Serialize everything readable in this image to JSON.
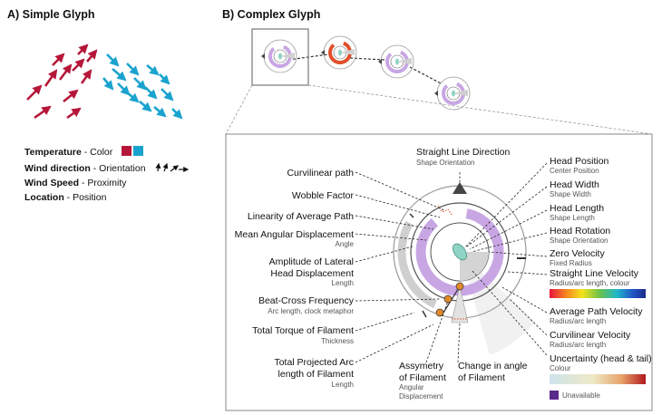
{
  "panel_a": {
    "title": "A) Simple Glyph",
    "legend": [
      {
        "key": "Temperature",
        "value": "Color"
      },
      {
        "key": "Wind direction",
        "value": "Orientation"
      },
      {
        "key": "Wind Speed",
        "value": "Proximity"
      },
      {
        "key": "Location",
        "value": "Position"
      }
    ],
    "colors": {
      "warm": "#b5173a",
      "cold": "#1aa3cf"
    }
  },
  "panel_b": {
    "title": "B) Complex Glyph",
    "labels_left": [
      {
        "main": "Curvilinear path",
        "sub": ""
      },
      {
        "main": "Wobble Factor",
        "sub": ""
      },
      {
        "main": "Linearity of Average Path",
        "sub": ""
      },
      {
        "main": "Mean Angular Displacement",
        "sub": "Angle"
      },
      {
        "main": "Amplitude of Lateral",
        "main2": "Head Displacement",
        "sub": "Length"
      },
      {
        "main": "Beat-Cross Frequency",
        "sub": "Arc length, clock metaphor"
      },
      {
        "main": "Total Torque of Filament",
        "sub": "Thickness"
      },
      {
        "main": "Total Projected Arc",
        "main2": "length of Filament",
        "sub": "Length"
      }
    ],
    "labels_bottom": [
      {
        "main": "Assymetry",
        "main2": "of Filament",
        "sub": "Angular",
        "sub2": "Displacement"
      },
      {
        "main": "Change in angle",
        "main2": "of Filament",
        "sub": ""
      }
    ],
    "label_top": {
      "main": "Straight Line Direction",
      "sub": "Shape Orientation"
    },
    "labels_right": [
      {
        "main": "Head Position",
        "sub": "Center Position"
      },
      {
        "main": "Head Width",
        "sub": "Shape Width"
      },
      {
        "main": "Head Length",
        "sub": "Shape Length"
      },
      {
        "main": "Head Rotation",
        "sub": "Shape Orientation"
      },
      {
        "main": "Zero Velocity",
        "sub": "Fixed Radius"
      },
      {
        "main": "Straight Line Velocity",
        "sub": "Radius/arc length, colour"
      },
      {
        "main": "Average Path Velocity",
        "sub": "Radius/arc length"
      },
      {
        "main": "Curvilinear Velocity",
        "sub": "Radius/arc length"
      },
      {
        "main": "Uncertainty (head & tail)",
        "sub": "Colour"
      }
    ],
    "unavailable_label": "Unavailable",
    "colors": {
      "purple": "#c8a6e3",
      "head": "#8fd3c4",
      "orange": "#e08a2c",
      "unavailable": "#5a2a8c"
    }
  }
}
